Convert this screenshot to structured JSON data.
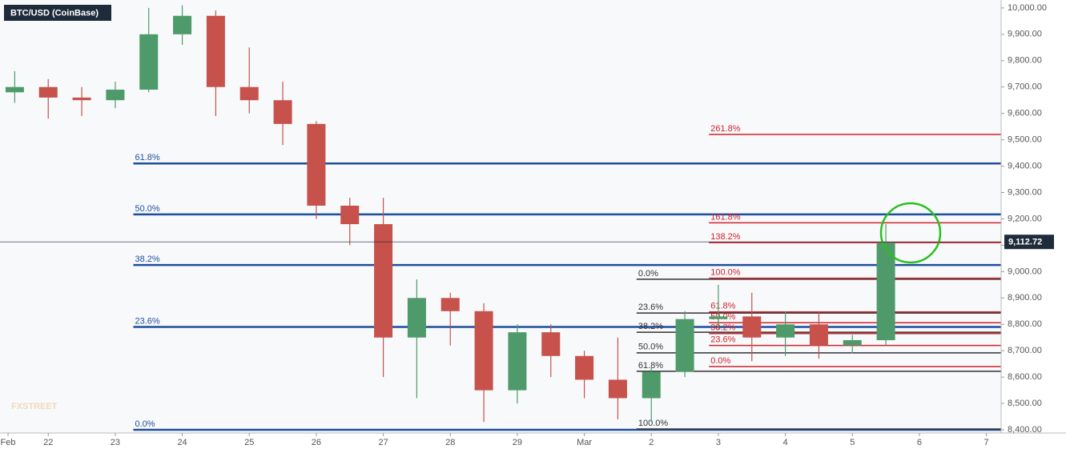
{
  "chart_data": {
    "type": "candlestick",
    "title": "BTC/USD (CoinBase)",
    "watermark": "FXSTREET",
    "up_color": "#4f9a6a",
    "down_color": "#c6524b",
    "grid": true,
    "x": [
      -0.5,
      0,
      0.5,
      1,
      1.5,
      2,
      2.5,
      3,
      3.5,
      4,
      4.5,
      5,
      5.5,
      6,
      6.5,
      7,
      7.5,
      8,
      8.5,
      9,
      9.5,
      10,
      10.5,
      11,
      11.5,
      12,
      12.5
    ],
    "open": [
      9680,
      9700,
      9660,
      9650,
      9690,
      9900,
      9970,
      9700,
      9650,
      9560,
      9250,
      9180,
      8750,
      8900,
      8850,
      8550,
      8770,
      8680,
      8590,
      8520,
      8620,
      8820,
      8830,
      8750,
      8800,
      8720,
      8740
    ],
    "high": [
      9760,
      9730,
      9700,
      9720,
      10000,
      10010,
      9990,
      9850,
      9720,
      9570,
      9280,
      9280,
      8970,
      8920,
      8880,
      8800,
      8800,
      8700,
      8750,
      8640,
      8850,
      8950,
      8920,
      8850,
      8850,
      8760,
      9180
    ],
    "low": [
      9640,
      9580,
      9590,
      9620,
      9680,
      9860,
      9590,
      9600,
      9480,
      9200,
      9100,
      8600,
      8520,
      8720,
      8430,
      8500,
      8600,
      8520,
      8440,
      8430,
      8600,
      8780,
      8660,
      8680,
      8670,
      8690,
      8720
    ],
    "close": [
      9700,
      9660,
      9650,
      9690,
      9900,
      9970,
      9700,
      9650,
      9560,
      9250,
      9180,
      8750,
      8900,
      8850,
      8550,
      8770,
      8680,
      8590,
      8520,
      8620,
      8820,
      8830,
      8750,
      8800,
      8720,
      8740,
      9110
    ],
    "xlim": [
      -0.72,
      14.22
    ],
    "xticks": [
      {
        "value": -0.6,
        "label": "Feb"
      },
      {
        "value": 0,
        "label": "22"
      },
      {
        "value": 1,
        "label": "23"
      },
      {
        "value": 2,
        "label": "24"
      },
      {
        "value": 3,
        "label": "25"
      },
      {
        "value": 4,
        "label": "26"
      },
      {
        "value": 5,
        "label": "27"
      },
      {
        "value": 6,
        "label": "28"
      },
      {
        "value": 7,
        "label": "29"
      },
      {
        "value": 8,
        "label": "Mar"
      },
      {
        "value": 9,
        "label": "2"
      },
      {
        "value": 10,
        "label": "3"
      },
      {
        "value": 11,
        "label": "4"
      },
      {
        "value": 12,
        "label": "5"
      },
      {
        "value": 13,
        "label": "6"
      },
      {
        "value": 14,
        "label": "7"
      }
    ],
    "ylim": [
      8388,
      10030
    ],
    "yticks": [
      {
        "value": 8400,
        "label": "8,400.00"
      },
      {
        "value": 8500,
        "label": "8,500.00"
      },
      {
        "value": 8600,
        "label": "8,600.00"
      },
      {
        "value": 8700,
        "label": "8,700.00"
      },
      {
        "value": 8800,
        "label": "8,800.00"
      },
      {
        "value": 8900,
        "label": "8,900.00"
      },
      {
        "value": 9000,
        "label": "9,000.00"
      },
      {
        "value": 9100,
        "label": "9,100.00"
      },
      {
        "value": 9200,
        "label": "9,200.00"
      },
      {
        "value": 9300,
        "label": "9,300.00"
      },
      {
        "value": 9400,
        "label": "9,400.00"
      },
      {
        "value": 9500,
        "label": "9,500.00"
      },
      {
        "value": 9600,
        "label": "9,600.00"
      },
      {
        "value": 9700,
        "label": "9,700.00"
      },
      {
        "value": 9800,
        "label": "9,800.00"
      },
      {
        "value": 9900,
        "label": "9,900.00"
      },
      {
        "value": 10000,
        "label": "10,000.00"
      }
    ],
    "last_price": {
      "value": 9112.72,
      "label": "9,112.72"
    },
    "fib_sets": [
      {
        "color": "#1f4e9c",
        "start": 1.27,
        "levels": [
          {
            "label": "61.8%",
            "value": 9410
          },
          {
            "label": "50.0%",
            "value": 9217
          },
          {
            "label": "38.2%",
            "value": 9025
          },
          {
            "label": "23.6%",
            "value": 8790
          },
          {
            "label": "0.0%",
            "value": 8400
          }
        ]
      },
      {
        "color": "#333333",
        "start": 8.78,
        "levels": [
          {
            "label": "0.0%",
            "value": 8971
          },
          {
            "label": "23.6%",
            "value": 8843
          },
          {
            "label": "38.2%",
            "value": 8770
          },
          {
            "label": "50.0%",
            "value": 8692
          },
          {
            "label": "61.8%",
            "value": 8622
          },
          {
            "label": "100.0%",
            "value": 8403
          }
        ]
      },
      {
        "color": "#d0232a",
        "start": 9.86,
        "levels": [
          {
            "label": "261.8%",
            "value": 9520
          },
          {
            "label": "161.8%",
            "value": 9185
          },
          {
            "label": "138.2%",
            "value": 9110
          },
          {
            "label": "100.0%",
            "value": 8975
          },
          {
            "label": "61.8%",
            "value": 8847
          },
          {
            "label": "50.0%",
            "value": 8806
          },
          {
            "label": "38.2%",
            "value": 8765
          },
          {
            "label": "23.6%",
            "value": 8720
          },
          {
            "label": "0.0%",
            "value": 8640
          }
        ]
      }
    ]
  }
}
